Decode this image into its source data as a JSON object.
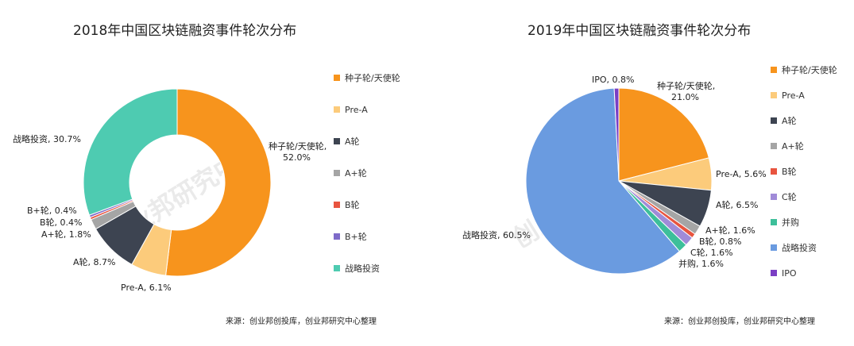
{
  "chart_data": [
    {
      "type": "donut",
      "title": "2018年中国区块链融资事件轮次分布",
      "series": [
        {
          "label": "种子轮/天使轮",
          "value": 52.0,
          "color": "#F7941D",
          "slice_label": "种子轮/天使轮,",
          "slice_value_text": "52.0%"
        },
        {
          "label": "Pre-A",
          "value": 6.1,
          "color": "#FCCB7B",
          "slice_label": "Pre-A, 6.1%"
        },
        {
          "label": "A轮",
          "value": 8.7,
          "color": "#3D4451",
          "slice_label": "A轮, 8.7%"
        },
        {
          "label": "A+轮",
          "value": 1.8,
          "color": "#A5A5A5",
          "slice_label": "A+轮, 1.8%"
        },
        {
          "label": "B轮",
          "value": 0.4,
          "color": "#E8543F",
          "slice_label": "B轮, 0.4%"
        },
        {
          "label": "B+轮",
          "value": 0.4,
          "color": "#7E6BC9",
          "slice_label": "B+轮, 0.4%"
        },
        {
          "label": "战略投资",
          "value": 30.7,
          "color": "#4ECBB1",
          "slice_label": "战略投资, 30.7%"
        }
      ],
      "legend": [
        "种子轮/天使轮",
        "Pre-A",
        "A轮",
        "A+轮",
        "B轮",
        "B+轮",
        "战略投资"
      ],
      "legend_position": "right",
      "source": "来源：创业邦创投库，创业邦研究中心整理",
      "watermark": "创业邦研究中心"
    },
    {
      "type": "pie",
      "title": "2019年中国区块链融资事件轮次分布",
      "series": [
        {
          "label": "种子轮/天使轮",
          "value": 21.0,
          "color": "#F7941D",
          "slice_label": "种子轮/天使轮,",
          "slice_value_text": "21.0%"
        },
        {
          "label": "Pre-A",
          "value": 5.6,
          "color": "#FCCB7B",
          "slice_label": "Pre-A, 5.6%"
        },
        {
          "label": "A轮",
          "value": 6.5,
          "color": "#3D4451",
          "slice_label": "A轮, 6.5%"
        },
        {
          "label": "A+轮",
          "value": 1.6,
          "color": "#A5A5A5",
          "slice_label": "A+轮, 1.6%"
        },
        {
          "label": "B轮",
          "value": 0.8,
          "color": "#E8543F",
          "slice_label": "B轮, 0.8%"
        },
        {
          "label": "C轮",
          "value": 1.6,
          "color": "#A08BD8",
          "slice_label": "C轮, 1.6%"
        },
        {
          "label": "并购",
          "value": 1.6,
          "color": "#3DBF9A",
          "slice_label": "并购, 1.6%"
        },
        {
          "label": "战略投资",
          "value": 60.5,
          "color": "#6A9BE0",
          "slice_label": "战略投资, 60.5%"
        },
        {
          "label": "IPO",
          "value": 0.8,
          "color": "#7B3FC4",
          "slice_label": "IPO, 0.8%"
        }
      ],
      "legend": [
        "种子轮/天使轮",
        "Pre-A",
        "A轮",
        "A+轮",
        "B轮",
        "C轮",
        "并购",
        "战略投资",
        "IPO"
      ],
      "legend_position": "right",
      "source": "来源：创业邦创投库，创业邦研究中心整理",
      "watermark": "创业邦研究中心"
    }
  ]
}
